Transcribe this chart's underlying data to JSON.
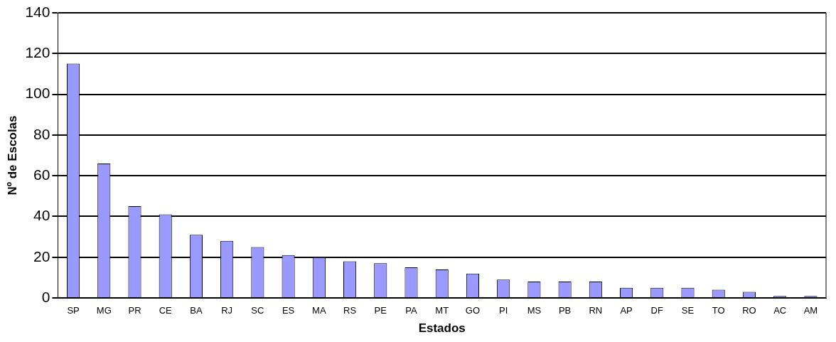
{
  "chart_data": {
    "type": "bar",
    "xlabel": "Estados",
    "ylabel": "Nº de Escolas",
    "categories": [
      "SP",
      "MG",
      "PR",
      "CE",
      "BA",
      "RJ",
      "SC",
      "ES",
      "MA",
      "RS",
      "PE",
      "PA",
      "MT",
      "GO",
      "PI",
      "MS",
      "PB",
      "RN",
      "AP",
      "DF",
      "SE",
      "TO",
      "RO",
      "AC",
      "AM"
    ],
    "values": [
      115,
      66,
      45,
      41,
      31,
      28,
      25,
      21,
      20,
      18,
      17,
      15,
      14,
      12,
      9,
      8,
      8,
      8,
      5,
      5,
      5,
      4,
      3,
      1,
      1
    ],
    "color": "#9999ff",
    "ylim": [
      0,
      140
    ],
    "yticks": [
      0,
      20,
      40,
      60,
      80,
      100,
      120,
      140
    ],
    "grid": "y",
    "legend": false
  }
}
